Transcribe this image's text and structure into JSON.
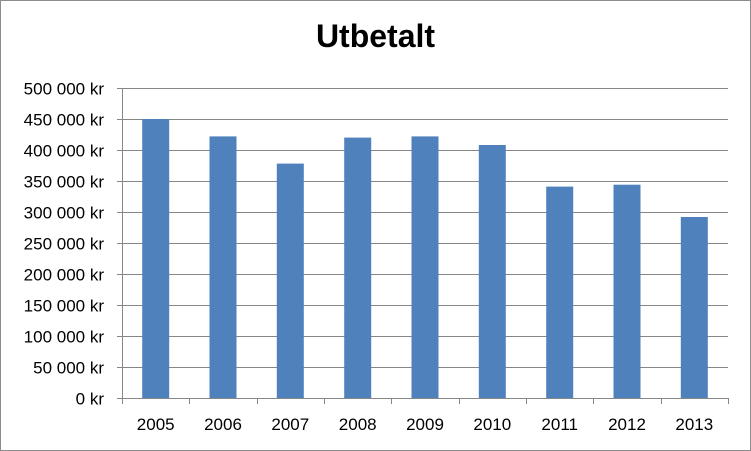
{
  "chart_data": {
    "type": "bar",
    "title": "Utbetalt",
    "xlabel": "",
    "ylabel": "",
    "categories": [
      "2005",
      "2006",
      "2007",
      "2008",
      "2009",
      "2010",
      "2011",
      "2012",
      "2013"
    ],
    "values": [
      450000,
      422000,
      378000,
      420000,
      422000,
      408000,
      341000,
      344000,
      292000
    ],
    "ylim": [
      0,
      500000
    ],
    "yticks": [
      0,
      50000,
      100000,
      150000,
      200000,
      250000,
      300000,
      350000,
      400000,
      450000,
      500000
    ],
    "ytick_labels": [
      "0 kr",
      "50 000 kr",
      "100 000 kr",
      "150 000 kr",
      "200 000 kr",
      "250 000 kr",
      "300 000 kr",
      "350 000 kr",
      "400 000 kr",
      "450 000 kr",
      "500 000 kr"
    ],
    "grid": true,
    "legend": "none",
    "colors": {
      "bar": "#4f81bd",
      "grid": "#868686",
      "axis": "#868686"
    }
  }
}
